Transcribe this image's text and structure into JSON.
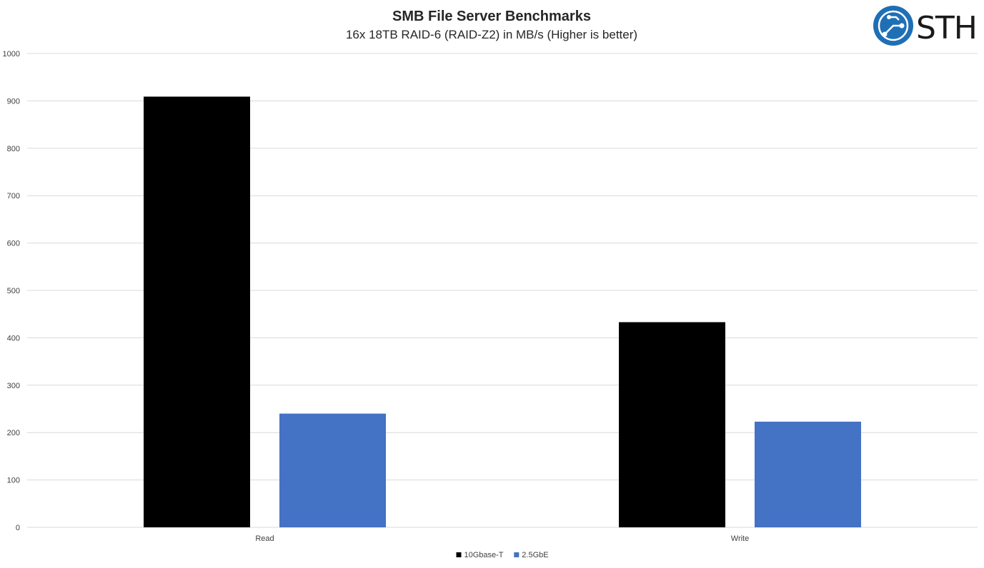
{
  "chart_data": {
    "type": "bar",
    "title": "SMB File Server Benchmarks",
    "subtitle": "16x 18TB RAID-6 (RAID-Z2) in MB/s (Higher is better)",
    "categories": [
      "Read",
      "Write"
    ],
    "series": [
      {
        "name": "10Gbase-T",
        "values": [
          909,
          433
        ],
        "color": "#000000"
      },
      {
        "name": "2.5GbE",
        "values": [
          240,
          223
        ],
        "color": "#4472c4"
      }
    ],
    "ylim": [
      0,
      1000
    ],
    "yticks": [
      0,
      100,
      200,
      300,
      400,
      500,
      600,
      700,
      800,
      900,
      1000
    ],
    "grid": true,
    "legend_position": "bottom"
  },
  "logo": {
    "text": "STH",
    "icon": "circuit-globe-icon",
    "color": "#1f6fb5"
  }
}
